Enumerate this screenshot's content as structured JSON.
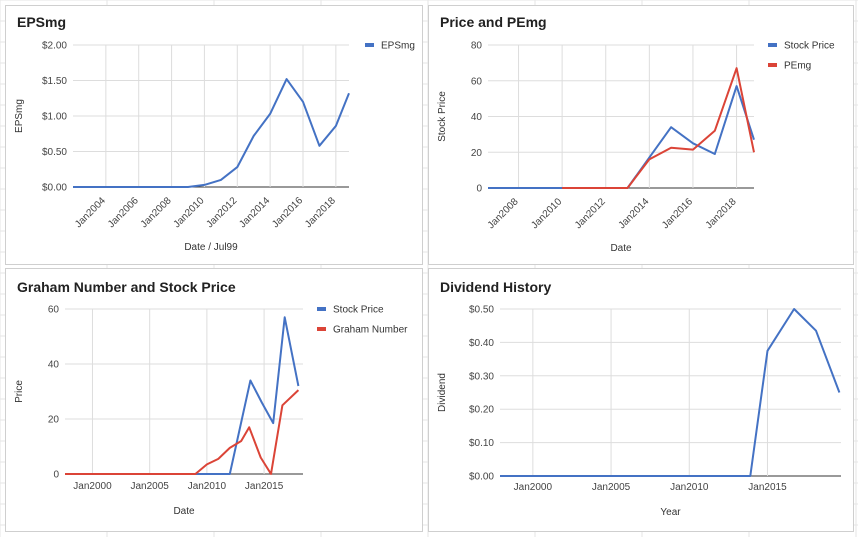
{
  "chart_data": [
    {
      "type": "line",
      "title": "EPSmg",
      "xlabel": "Date / Jul99",
      "ylabel": "EPSmg",
      "ylim": [
        0,
        2
      ],
      "xlim": [
        2002,
        2018.8
      ],
      "y_ticks": [
        "$0.00",
        "$0.50",
        "$1.00",
        "$1.50",
        "$2.00"
      ],
      "y_tick_values": [
        0,
        0.5,
        1,
        1.5,
        2
      ],
      "x_ticks": [
        "Jan2004",
        "Jan2006",
        "Jan2008",
        "Jan2010",
        "Jan2012",
        "Jan2014",
        "Jan2016",
        "Jan2018"
      ],
      "x_tick_values": [
        2004,
        2006,
        2008,
        2010,
        2012,
        2014,
        2016,
        2018
      ],
      "x_tick_rotation": -45,
      "legend_position": "right",
      "grid": true,
      "series": [
        {
          "name": "EPSmg",
          "color": "#4472c4",
          "points": [
            [
              2002,
              0
            ],
            [
              2003,
              0
            ],
            [
              2004,
              0
            ],
            [
              2005,
              0
            ],
            [
              2006,
              0
            ],
            [
              2007,
              0
            ],
            [
              2008,
              0
            ],
            [
              2009,
              0
            ],
            [
              2010,
              0.03
            ],
            [
              2011,
              0.1
            ],
            [
              2012,
              0.28
            ],
            [
              2013,
              0.72
            ],
            [
              2014,
              1.03
            ],
            [
              2015,
              1.52
            ],
            [
              2016,
              1.2
            ],
            [
              2017,
              0.58
            ],
            [
              2018,
              0.86
            ],
            [
              2018.8,
              1.32
            ]
          ]
        }
      ]
    },
    {
      "type": "line",
      "title": "Price and PEmg",
      "xlabel": "Date",
      "ylabel": "Stock Price",
      "ylim": [
        0,
        80
      ],
      "xlim": [
        2006.6,
        2018.8
      ],
      "y_ticks": [
        "0",
        "20",
        "40",
        "60",
        "80"
      ],
      "y_tick_values": [
        0,
        20,
        40,
        60,
        80
      ],
      "x_ticks": [
        "Jan2008",
        "Jan2010",
        "Jan2012",
        "Jan2014",
        "Jan2016",
        "Jan2018"
      ],
      "x_tick_values": [
        2008,
        2010,
        2012,
        2014,
        2016,
        2018
      ],
      "x_tick_rotation": -45,
      "legend_position": "right",
      "grid": true,
      "series": [
        {
          "name": "Stock Price",
          "color": "#4472c4",
          "points": [
            [
              2006.6,
              0
            ],
            [
              2008,
              0
            ],
            [
              2010,
              0
            ],
            [
              2012,
              0
            ],
            [
              2013,
              0
            ],
            [
              2014,
              17
            ],
            [
              2015,
              34
            ],
            [
              2016,
              25
            ],
            [
              2017,
              19
            ],
            [
              2018,
              57
            ],
            [
              2018.8,
              27
            ]
          ]
        },
        {
          "name": "PEmg",
          "color": "#db4437",
          "points": [
            [
              2010,
              0
            ],
            [
              2011,
              0
            ],
            [
              2012,
              0
            ],
            [
              2013,
              0
            ],
            [
              2014,
              16
            ],
            [
              2015,
              22.5
            ],
            [
              2016,
              21.5
            ],
            [
              2017,
              32
            ],
            [
              2018,
              67
            ],
            [
              2018.8,
              20
            ]
          ]
        }
      ]
    },
    {
      "type": "line",
      "title": "Graham Number and Stock Price",
      "xlabel": "Date",
      "ylabel": "Price",
      "ylim": [
        0,
        60
      ],
      "xlim": [
        1997.6,
        2018.4
      ],
      "y_ticks": [
        "0",
        "20",
        "40",
        "60"
      ],
      "y_tick_values": [
        0,
        20,
        40,
        60
      ],
      "x_ticks": [
        "Jan2000",
        "Jan2005",
        "Jan2010",
        "Jan2015"
      ],
      "x_tick_values": [
        2000,
        2005,
        2010,
        2015
      ],
      "x_tick_rotation": 0,
      "legend_position": "right",
      "grid": true,
      "series": [
        {
          "name": "Stock Price",
          "color": "#4472c4",
          "points": [
            [
              1997.6,
              0
            ],
            [
              2000,
              0
            ],
            [
              2005,
              0
            ],
            [
              2010,
              0
            ],
            [
              2012,
              0
            ],
            [
              2013.8,
              34
            ],
            [
              2014.8,
              26
            ],
            [
              2015.8,
              18.5
            ],
            [
              2016.8,
              57
            ],
            [
              2018,
              32
            ]
          ]
        },
        {
          "name": "Graham Number",
          "color": "#db4437",
          "points": [
            [
              1997.6,
              0
            ],
            [
              2000,
              0
            ],
            [
              2005,
              0
            ],
            [
              2009,
              0
            ],
            [
              2010,
              3.5
            ],
            [
              2011,
              5.5
            ],
            [
              2012,
              9.5
            ],
            [
              2013,
              12
            ],
            [
              2013.7,
              17
            ],
            [
              2014.7,
              6
            ],
            [
              2015.6,
              0
            ],
            [
              2016.6,
              25
            ],
            [
              2018,
              30.5
            ]
          ]
        }
      ]
    },
    {
      "type": "line",
      "title": "Dividend History",
      "xlabel": "Year",
      "ylabel": "Dividend",
      "ylim": [
        0,
        0.5
      ],
      "xlim": [
        1997.9,
        2019.7
      ],
      "y_ticks": [
        "$0.00",
        "$0.10",
        "$0.20",
        "$0.30",
        "$0.40",
        "$0.50"
      ],
      "y_tick_values": [
        0,
        0.1,
        0.2,
        0.3,
        0.4,
        0.5
      ],
      "x_ticks": [
        "Jan2000",
        "Jan2005",
        "Jan2010",
        "Jan2015"
      ],
      "x_tick_values": [
        2000,
        2005,
        2010,
        2015
      ],
      "x_tick_rotation": 0,
      "legend_position": "none",
      "grid": true,
      "series": [
        {
          "color": "#4472c4",
          "points": [
            [
              1997.9,
              0
            ],
            [
              2000,
              0
            ],
            [
              2005,
              0
            ],
            [
              2010,
              0
            ],
            [
              2013.9,
              0
            ],
            [
              2015,
              0.375
            ],
            [
              2016.7,
              0.5
            ],
            [
              2018.1,
              0.435
            ],
            [
              2019.6,
              0.25
            ]
          ]
        }
      ]
    }
  ]
}
